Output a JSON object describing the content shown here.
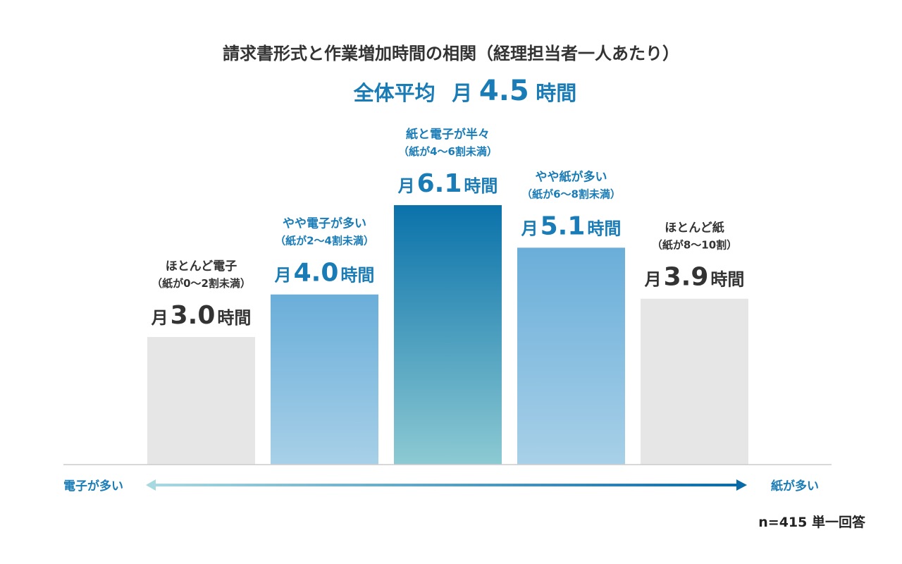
{
  "chart_data": {
    "type": "bar",
    "title": "請求書形式と作業増加時間の相関（経理担当者一人あたり）",
    "average": {
      "label": "全体平均",
      "prefix": "月",
      "value": 4.5,
      "value_text": "4.5",
      "unit": "時間"
    },
    "categories": [
      {
        "label": "ほとんど電子",
        "sublabel": "（紙が0〜2割未満）",
        "value": 3.0,
        "value_text": "3.0",
        "highlight": false
      },
      {
        "label": "やや電子が多い",
        "sublabel": "（紙が2〜4割未満）",
        "value": 4.0,
        "value_text": "4.0",
        "highlight": true
      },
      {
        "label": "紙と電子が半々",
        "sublabel": "（紙が4〜6割未満）",
        "value": 6.1,
        "value_text": "6.1",
        "highlight": true
      },
      {
        "label": "やや紙が多い",
        "sublabel": "（紙が6〜8割未満）",
        "value": 5.1,
        "value_text": "5.1",
        "highlight": true
      },
      {
        "label": "ほとんど紙",
        "sublabel": "（紙が8〜10割）",
        "value": 3.9,
        "value_text": "3.9",
        "highlight": false
      }
    ],
    "value_prefix": "月",
    "value_unit": "時間",
    "ylim": [
      0,
      6.1
    ],
    "grid": false,
    "axis": {
      "left_label": "電子が多い",
      "right_label": "紙が多い"
    },
    "note": "n=415 単一回答",
    "colors": {
      "neutral_bar": "#e6e6e6",
      "blue_top": "#6aaed9",
      "blue_bottom": "#a8d0e8",
      "peak_top": "#0a72aa",
      "peak_bottom": "#8dcad3",
      "accent_text": "#1a7cb6",
      "dark_text": "#333333",
      "baseline": "#cccccc",
      "arrow_start": "#a8d8e0",
      "arrow_end": "#0a6aa8"
    }
  }
}
